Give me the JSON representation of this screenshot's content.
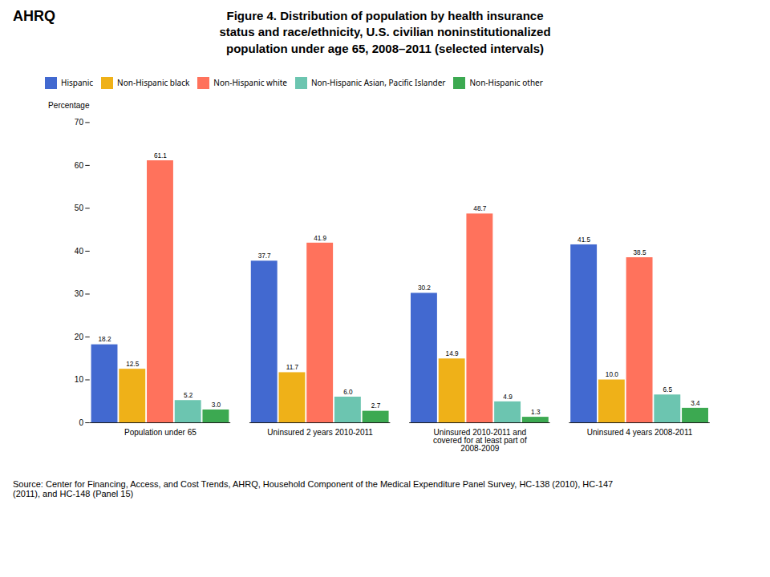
{
  "chart_data": {
    "type": "bar",
    "title": "Figure 4. Distribution of population by health insurance\nstatus and race/ethnicity, U.S. civilian  noninstitutionalized\npopulation under age 65, 2008–2011 (selected intervals)",
    "ylabel": "Percentage",
    "categories": [
      "Population under 65",
      "Uninsured 2 years 2010-2011",
      "Uninsured 2010-2011 and\ncovered for at least part of\n2008-2009",
      "Uninsured 4 years 2008-2011"
    ],
    "series": [
      {
        "name": "Hispanic",
        "values": [
          18.2,
          37.7,
          30.2,
          41.5
        ],
        "value_labels": [
          "18.2",
          "37.7",
          "30.2",
          "41.5"
        ]
      },
      {
        "name": "Non-Hispanic black",
        "values": [
          12.5,
          11.7,
          14.9,
          10.0
        ],
        "value_labels": [
          "12.5",
          "11.7",
          "14.9",
          "10.0"
        ]
      },
      {
        "name": "Non-Hispanic white",
        "values": [
          61.1,
          41.9,
          48.7,
          38.5
        ],
        "value_labels": [
          "61.1",
          "41.9",
          "48.7",
          "38.5"
        ]
      },
      {
        "name": "Non-Hispanic Asian, Pacific Islander",
        "values": [
          5.2,
          6.0,
          4.9,
          6.5
        ],
        "value_labels": [
          "5.2",
          "6.0",
          "4.9",
          "6.5"
        ]
      },
      {
        "name": "Non-Hispanic other",
        "values": [
          3.0,
          2.7,
          1.3,
          3.4
        ],
        "value_labels": [
          "3.0",
          "2.7",
          "1.3",
          "3.4"
        ]
      }
    ],
    "ylim": [
      0,
      70
    ],
    "yticks": [
      0,
      10,
      20,
      30,
      40,
      50,
      60,
      70
    ],
    "grid": false,
    "legend": "top",
    "data_labels": true,
    "annotations": [
      "AHRQ",
      "Source: Center for Financing, Access, and Cost Trends, AHRQ, Household Component of the Medical Expenditure Panel Survey,  HC-138 (2010), HC-147\n(2011), and HC-148 (Panel 15)"
    ]
  }
}
